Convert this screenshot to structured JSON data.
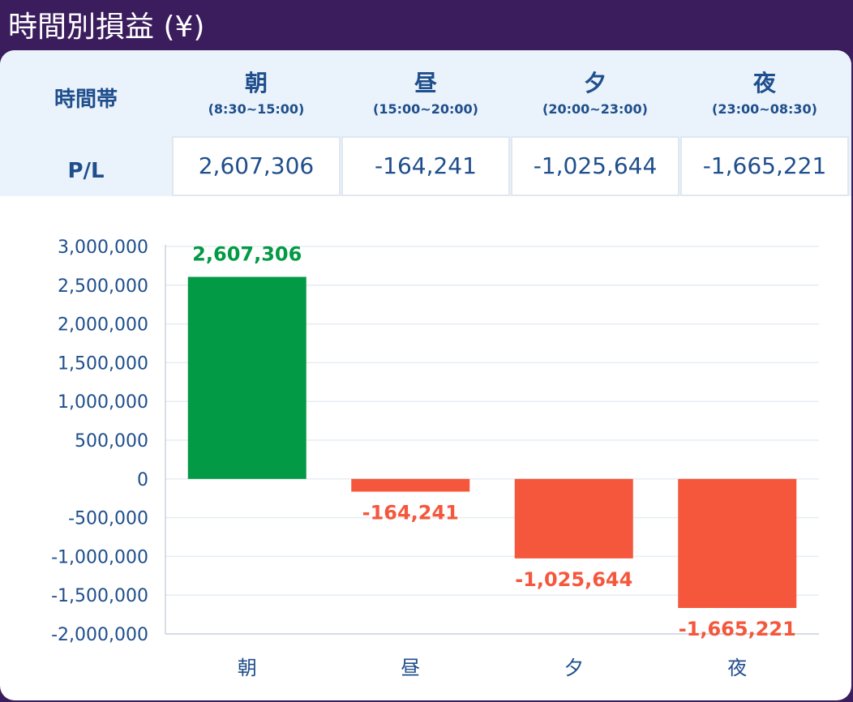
{
  "header": {
    "title": "時間別損益 (¥)"
  },
  "table": {
    "row_header_time": "時間帯",
    "row_header_pl": "P/L",
    "columns": [
      {
        "name": "朝",
        "range": "(8:30~15:00)",
        "value": "2,607,306"
      },
      {
        "name": "昼",
        "range": "(15:00~20:00)",
        "value": "-164,241"
      },
      {
        "name": "夕",
        "range": "(20:00~23:00)",
        "value": "-1,025,644"
      },
      {
        "name": "夜",
        "range": "(23:00~08:30)",
        "value": "-1,665,221"
      }
    ]
  },
  "colors": {
    "positive": "#029a44",
    "negative": "#f4573c",
    "text": "#1f4e8c",
    "grid": "#e6edf3"
  },
  "chart_data": {
    "type": "bar",
    "categories": [
      "朝",
      "昼",
      "夕",
      "夜"
    ],
    "values": [
      2607306,
      -164241,
      -1025644,
      -1665221
    ],
    "value_labels": [
      "2,607,306",
      "-164,241",
      "-1,025,644",
      "-1,665,221"
    ],
    "y_ticks": [
      3000000,
      2500000,
      2000000,
      1500000,
      1000000,
      500000,
      0,
      -500000,
      -1000000,
      -1500000,
      -2000000
    ],
    "y_tick_labels": [
      "3,000,000",
      "2,500,000",
      "2,000,000",
      "1,500,000",
      "1,000,000",
      "500,000",
      "0",
      "-500,000",
      "-1,000,000",
      "-1,500,000",
      "-2,000,000"
    ],
    "ylim": [
      -2000000,
      3000000
    ],
    "grid": true,
    "legend": false,
    "title": "",
    "xlabel": "",
    "ylabel": ""
  }
}
